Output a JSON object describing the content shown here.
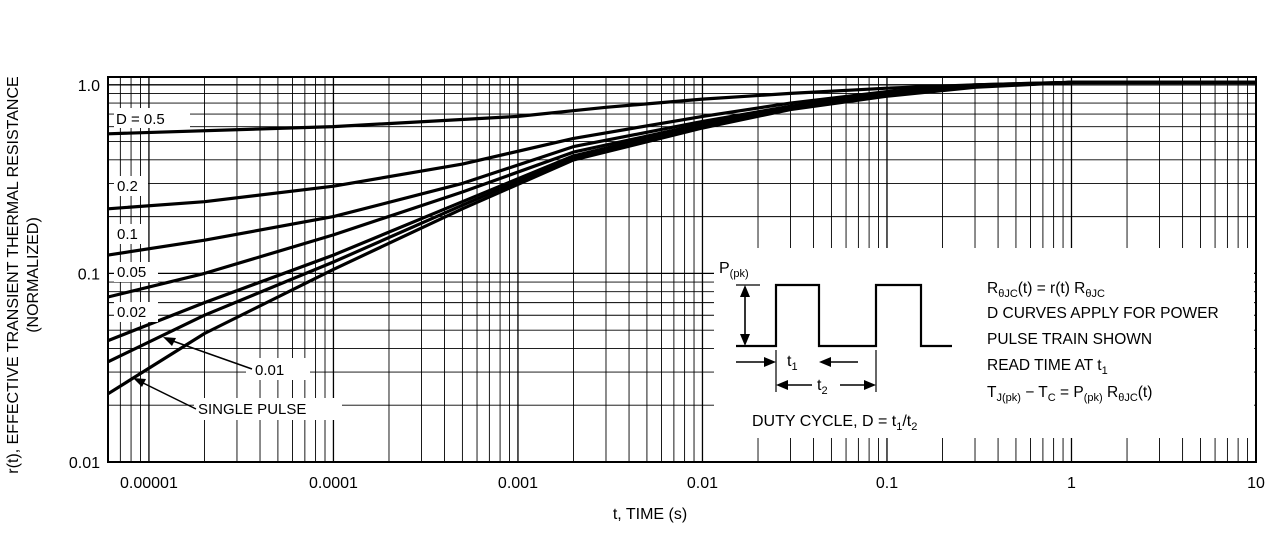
{
  "chart_data": {
    "type": "line",
    "title": "",
    "xlabel": "t, TIME (s)",
    "ylabel_line1": "r(t), EFFECTIVE TRANSIENT THERMAL RESISTANCE",
    "ylabel_line2": "(NORMALIZED)",
    "x_scale": "log",
    "y_scale": "log",
    "xlim": [
      6e-06,
      10
    ],
    "ylim": [
      0.01,
      1.1
    ],
    "grid": true,
    "x_ticks": [
      {
        "value": 1e-05,
        "label": "0.00001"
      },
      {
        "value": 0.0001,
        "label": "0.0001"
      },
      {
        "value": 0.001,
        "label": "0.001"
      },
      {
        "value": 0.01,
        "label": "0.01"
      },
      {
        "value": 0.1,
        "label": "0.1"
      },
      {
        "value": 1,
        "label": "1"
      },
      {
        "value": 10,
        "label": "10"
      }
    ],
    "y_ticks": [
      {
        "value": 0.01,
        "label": "0.01"
      },
      {
        "value": 0.1,
        "label": "0.1"
      },
      {
        "value": 1.0,
        "label": "1.0"
      }
    ],
    "series": [
      {
        "name": "D = 0.5",
        "x": [
          6e-06,
          0.0001,
          0.001,
          0.003,
          0.01,
          0.03,
          0.1,
          0.3,
          1,
          10
        ],
        "y": [
          0.55,
          0.6,
          0.68,
          0.76,
          0.84,
          0.9,
          0.96,
          1.0,
          1.03,
          1.03
        ]
      },
      {
        "name": "0.2",
        "x": [
          6e-06,
          2e-05,
          0.0001,
          0.0005,
          0.002,
          0.01,
          0.03,
          0.1,
          0.3,
          1,
          10
        ],
        "y": [
          0.22,
          0.24,
          0.29,
          0.38,
          0.52,
          0.68,
          0.8,
          0.92,
          1.0,
          1.03,
          1.03
        ]
      },
      {
        "name": "0.1",
        "x": [
          6e-06,
          2e-05,
          0.0001,
          0.0005,
          0.002,
          0.01,
          0.03,
          0.1,
          0.3,
          1,
          10
        ],
        "y": [
          0.125,
          0.15,
          0.2,
          0.3,
          0.47,
          0.64,
          0.77,
          0.9,
          0.99,
          1.03,
          1.03
        ]
      },
      {
        "name": "0.05",
        "x": [
          6e-06,
          2e-05,
          0.0001,
          0.0005,
          0.002,
          0.01,
          0.03,
          0.1,
          0.3,
          1,
          10
        ],
        "y": [
          0.075,
          0.1,
          0.16,
          0.27,
          0.44,
          0.62,
          0.76,
          0.89,
          0.98,
          1.03,
          1.03
        ]
      },
      {
        "name": "0.02",
        "x": [
          6e-06,
          2e-05,
          0.0001,
          0.0005,
          0.002,
          0.01,
          0.03,
          0.1,
          0.3,
          1,
          10
        ],
        "y": [
          0.044,
          0.07,
          0.125,
          0.24,
          0.42,
          0.61,
          0.75,
          0.88,
          0.98,
          1.03,
          1.03
        ]
      },
      {
        "name": "0.01",
        "x": [
          6e-06,
          2e-05,
          0.0001,
          0.0005,
          0.002,
          0.01,
          0.03,
          0.1,
          0.3,
          1,
          10
        ],
        "y": [
          0.034,
          0.06,
          0.115,
          0.23,
          0.41,
          0.6,
          0.75,
          0.88,
          0.98,
          1.03,
          1.03
        ]
      },
      {
        "name": "SINGLE PULSE",
        "x": [
          6e-06,
          2e-05,
          0.0001,
          0.0005,
          0.002,
          0.01,
          0.03,
          0.1,
          0.3,
          1,
          10
        ],
        "y": [
          0.023,
          0.048,
          0.105,
          0.22,
          0.4,
          0.59,
          0.74,
          0.87,
          0.97,
          1.03,
          1.03
        ]
      }
    ],
    "curve_labels": [
      "D = 0.5",
      "0.2",
      "0.1",
      "0.05",
      "0.02",
      "0.01",
      "SINGLE PULSE"
    ],
    "inset": {
      "ppk_main": "P",
      "ppk_sub": "(pk)",
      "t1_main": "t",
      "t1_sub": "1",
      "t2_main": "t",
      "t2_sub": "2",
      "duty_prefix": "DUTY CYCLE, D = t",
      "duty_sub1": "1",
      "duty_mid": "/t",
      "duty_sub2": "2"
    },
    "notes": {
      "line1": {
        "r1": "R",
        "r1_sub": "θJC",
        "mid": "(t) = r(t) R",
        "r2_sub": "θJC"
      },
      "line2": "D CURVES APPLY FOR POWER",
      "line3": "PULSE TRAIN SHOWN",
      "line4": {
        "text": "READ TIME AT t",
        "sub": "1"
      },
      "line5": {
        "t": "T",
        "t_sub": "J(pk)",
        "minus": " − T",
        "c_sub": "C",
        "eq": " = P",
        "p_sub": "(pk)",
        "r": " R",
        "r_sub": "θJC",
        "tail": "(t)"
      }
    }
  }
}
